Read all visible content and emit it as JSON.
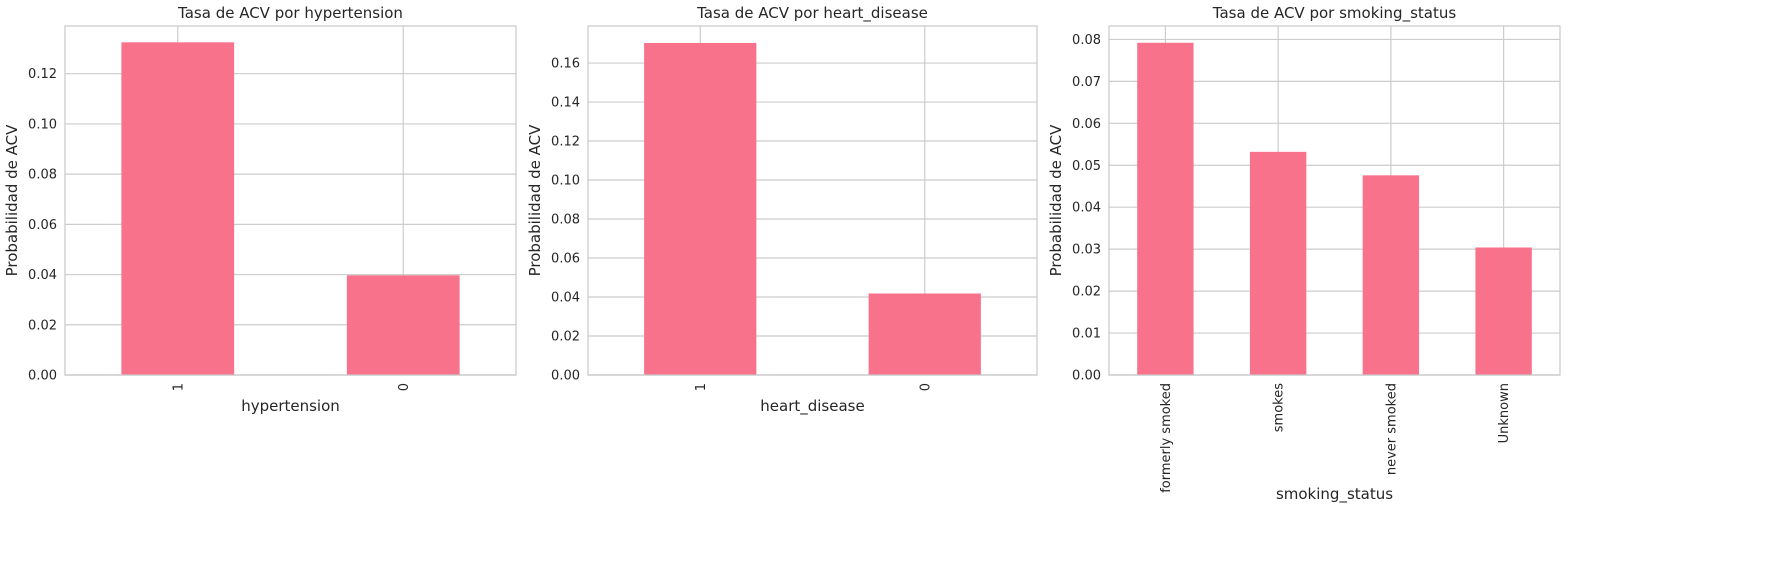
{
  "colors": {
    "bar": "#f7728a",
    "grid": "#cccccc",
    "frame": "#c8c8c8",
    "text": "#262626",
    "background": "#ffffff"
  },
  "chart_data": [
    {
      "type": "bar",
      "title": "Tasa de ACV por hypertension",
      "xlabel": "hypertension",
      "ylabel": "Probabilidad de ACV",
      "categories": [
        "1",
        "0"
      ],
      "values": [
        0.1325,
        0.0397
      ],
      "ylim": [
        0,
        0.139
      ],
      "yticks": [
        0,
        0.02,
        0.04,
        0.06,
        0.08,
        0.1,
        0.12
      ],
      "ytick_labels": [
        "0.00",
        "0.02",
        "0.04",
        "0.06",
        "0.08",
        "0.10",
        "0.12"
      ],
      "grid": true,
      "xtick_rotation": 90
    },
    {
      "type": "bar",
      "title": "Tasa de ACV por heart_disease",
      "xlabel": "heart_disease",
      "ylabel": "Probabilidad de ACV",
      "categories": [
        "1",
        "0"
      ],
      "values": [
        0.1703,
        0.0418
      ],
      "ylim": [
        0,
        0.179
      ],
      "yticks": [
        0,
        0.02,
        0.04,
        0.06,
        0.08,
        0.1,
        0.12,
        0.14,
        0.16
      ],
      "ytick_labels": [
        "0.00",
        "0.02",
        "0.04",
        "0.06",
        "0.08",
        "0.10",
        "0.12",
        "0.14",
        "0.16"
      ],
      "grid": true,
      "xtick_rotation": 90
    },
    {
      "type": "bar",
      "title": "Tasa de ACV por smoking_status",
      "xlabel": "smoking_status",
      "ylabel": "Probabilidad de ACV",
      "categories": [
        "formerly smoked",
        "smokes",
        "never smoked",
        "Unknown"
      ],
      "values": [
        0.0792,
        0.0532,
        0.0476,
        0.0304
      ],
      "ylim": [
        0,
        0.0832
      ],
      "yticks": [
        0,
        0.01,
        0.02,
        0.03,
        0.04,
        0.05,
        0.06,
        0.07,
        0.08
      ],
      "ytick_labels": [
        "0.00",
        "0.01",
        "0.02",
        "0.03",
        "0.04",
        "0.05",
        "0.06",
        "0.07",
        "0.08"
      ],
      "grid": true,
      "xtick_rotation": 90
    }
  ]
}
